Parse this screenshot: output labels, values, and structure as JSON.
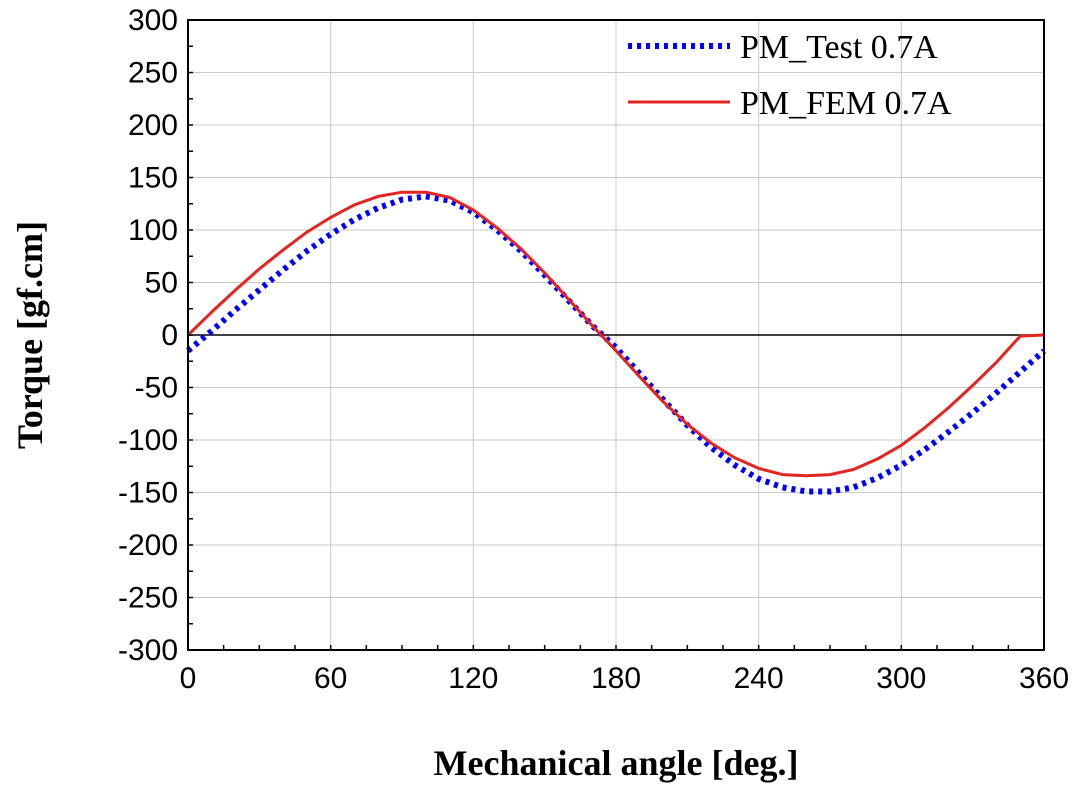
{
  "chart_data": {
    "type": "line",
    "title": "",
    "xlabel": "Mechanical angle [deg.]",
    "ylabel": "Torque [gf.cm]",
    "xlim": [
      0,
      360
    ],
    "ylim": [
      -300,
      300
    ],
    "xticks": [
      "0",
      "60",
      "120",
      "180",
      "240",
      "300",
      "360"
    ],
    "yticks": [
      "300",
      "250",
      "200",
      "150",
      "100",
      "50",
      "0",
      "-50",
      "-100",
      "-150",
      "-200",
      "-250",
      "-300"
    ],
    "grid": true,
    "legend_position": "top-right",
    "x": [
      0,
      10,
      20,
      30,
      40,
      50,
      60,
      70,
      80,
      90,
      100,
      110,
      120,
      130,
      140,
      150,
      160,
      170,
      180,
      190,
      200,
      210,
      220,
      230,
      240,
      250,
      260,
      270,
      280,
      290,
      300,
      310,
      320,
      330,
      340,
      350,
      360
    ],
    "series": [
      {
        "name": "PM_Test 0.7A",
        "color": "#0000ff",
        "style": "dotted",
        "values": [
          -15,
          4,
          24,
          43,
          62,
          80,
          96,
          110,
          121,
          129,
          132,
          128,
          117,
          100,
          80,
          57,
          33,
          9,
          -12,
          -37,
          -62,
          -86,
          -107,
          -124,
          -137,
          -145,
          -149,
          -149,
          -145,
          -136,
          -124,
          -109,
          -92,
          -74,
          -55,
          -35,
          -15
        ]
      },
      {
        "name": "PM_FEM 0.7A",
        "color": "#e32420",
        "style": "solid",
        "values": [
          0,
          22,
          43,
          63,
          81,
          98,
          112,
          124,
          132,
          136,
          136,
          131,
          119,
          102,
          82,
          59,
          34,
          9,
          -15,
          -40,
          -64,
          -85,
          -103,
          -117,
          -127,
          -133,
          -134,
          -133,
          -128,
          -118,
          -105,
          -88,
          -69,
          -48,
          -26,
          -1,
          0
        ]
      }
    ]
  }
}
